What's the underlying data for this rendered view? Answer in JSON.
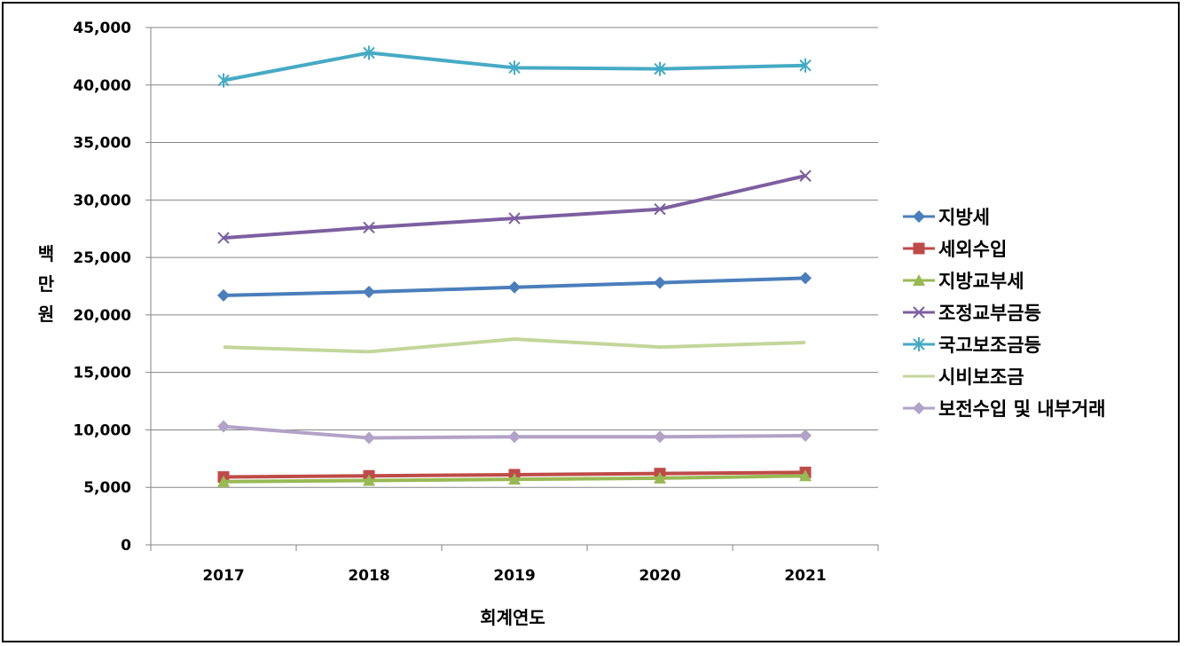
{
  "chart_data": {
    "type": "line",
    "title": "",
    "xlabel": "회계연도",
    "ylabel": "백만원",
    "ylabel_chars": [
      "백",
      "만",
      "원"
    ],
    "categories": [
      "2017",
      "2018",
      "2019",
      "2020",
      "2021"
    ],
    "ylim": [
      0,
      45000
    ],
    "yticks": [
      0,
      5000,
      10000,
      15000,
      20000,
      25000,
      30000,
      35000,
      40000,
      45000
    ],
    "ytick_labels": [
      "0",
      "5,000",
      "10,000",
      "15,000",
      "20,000",
      "25,000",
      "30,000",
      "35,000",
      "40,000",
      "45,000"
    ],
    "grid": "horizontal",
    "legend": "right",
    "series": [
      {
        "name": "지방세",
        "values": [
          21700,
          22000,
          22400,
          22800,
          23200
        ],
        "color": "#4A7EBB",
        "marker": "diamond"
      },
      {
        "name": "세외수입",
        "values": [
          5900,
          6000,
          6100,
          6200,
          6300
        ],
        "color": "#BE4B48",
        "marker": "square"
      },
      {
        "name": "지방교부세",
        "values": [
          5500,
          5600,
          5700,
          5800,
          6000
        ],
        "color": "#98B954",
        "marker": "triangle"
      },
      {
        "name": "조정교부금등",
        "values": [
          26700,
          27600,
          28400,
          29200,
          32100
        ],
        "color": "#7D5FA0",
        "marker": "x"
      },
      {
        "name": "국고보조금등",
        "values": [
          40400,
          42800,
          41500,
          41400,
          41700
        ],
        "color": "#46AAC5",
        "marker": "star"
      },
      {
        "name": "시비보조금",
        "values": [
          17200,
          16800,
          17900,
          17200,
          17600
        ],
        "color": "#C3D69B",
        "marker": "none"
      },
      {
        "name": "보전수입 및 내부거래",
        "values": [
          10300,
          9300,
          9400,
          9400,
          9500
        ],
        "color": "#B3A2C7",
        "marker": "diamond"
      }
    ]
  }
}
